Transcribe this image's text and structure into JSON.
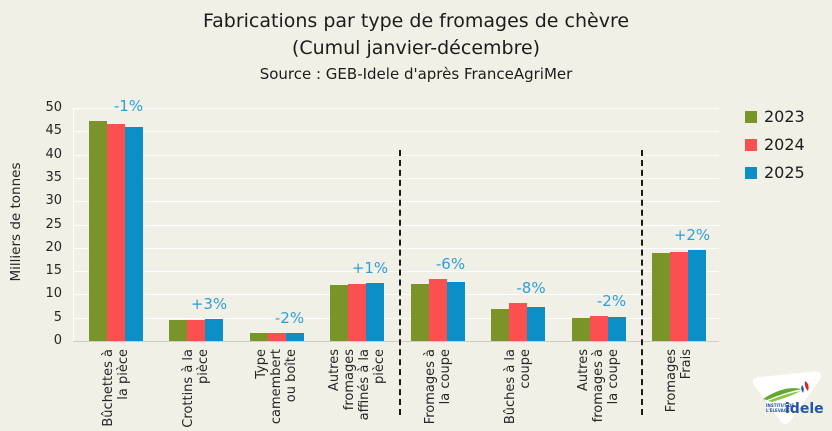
{
  "chart_data": {
    "type": "bar",
    "title": "Fabrications par type de fromages de chèvre",
    "subtitle": "(Cumul janvier-décembre)",
    "source": "Source : GEB-Idele d'après FranceAgriMer",
    "ylabel": "Milliers de tonnes",
    "ylim": [
      0,
      50
    ],
    "ytick_step": 5,
    "grid": true,
    "legend_position": "right",
    "categories": [
      [
        "Bûchettes à",
        "la pièce"
      ],
      [
        "Crottins à la",
        "pièce"
      ],
      [
        "Type",
        "camembert",
        "ou boîte"
      ],
      [
        "Autres",
        "fromages",
        "affinés à la",
        "pièce"
      ],
      [
        "Fromages à",
        "la coupe"
      ],
      [
        "Bûches à la",
        "coupe"
      ],
      [
        "Autres",
        "fromages à",
        "la coupe"
      ],
      [
        "Fromages",
        "Frais"
      ]
    ],
    "series": [
      {
        "name": "2023",
        "color": "#7a942a",
        "values": [
          47.2,
          4.6,
          1.8,
          12.0,
          12.2,
          6.9,
          4.9,
          18.8
        ]
      },
      {
        "name": "2024",
        "color": "#fc4f4f",
        "values": [
          46.5,
          4.6,
          1.8,
          12.3,
          13.4,
          8.1,
          5.3,
          19.1
        ]
      },
      {
        "name": "2025",
        "color": "#0c8ec7",
        "values": [
          46.0,
          4.7,
          1.8,
          12.4,
          12.6,
          7.4,
          5.2,
          19.5
        ]
      }
    ],
    "annotations": [
      "-1%",
      "+3%",
      "-2%",
      "+1%",
      "-6%",
      "-8%",
      "-2%",
      "+2%"
    ],
    "annotation_color": "#2e9fd8",
    "separators_after_category_index": [
      3,
      6
    ]
  },
  "logo": {
    "brand": "idele",
    "institute_line1": "INSTITUT DE",
    "institute_line2": "L'ÉLEVAGE"
  }
}
